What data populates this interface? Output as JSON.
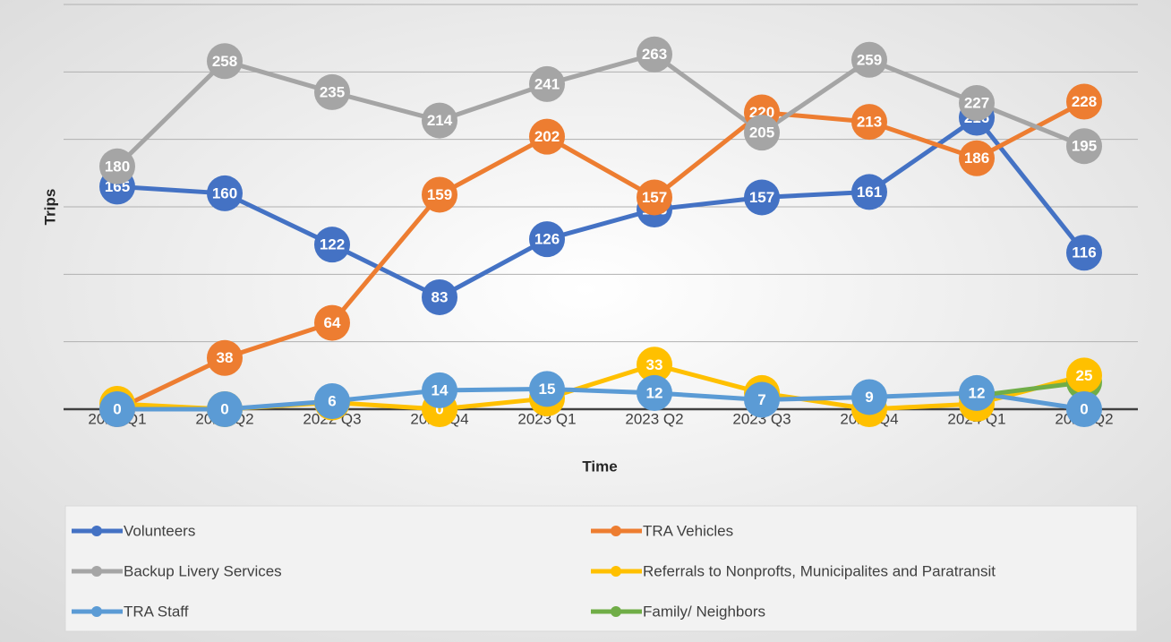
{
  "chart_data": {
    "type": "line",
    "categories": [
      "2022 Q1",
      "2022 Q2",
      "2022 Q3",
      "2022 Q4",
      "2023 Q1",
      "2023 Q2",
      "2023 Q3",
      "2023 Q4",
      "2024 Q1",
      "2024 Q2"
    ],
    "series": [
      {
        "name": "Volunteers",
        "color": "#4472c4",
        "values": [
          165,
          160,
          122,
          83,
          126,
          148,
          157,
          161,
          216,
          116
        ]
      },
      {
        "name": "TRA Vehicles",
        "color": "#ed7d31",
        "values": [
          0,
          38,
          64,
          159,
          202,
          157,
          220,
          213,
          186,
          228
        ]
      },
      {
        "name": "Backup Livery Services",
        "color": "#a5a5a5",
        "values": [
          180,
          258,
          235,
          214,
          241,
          263,
          205,
          259,
          227,
          195
        ]
      },
      {
        "name": "Referrals to Nonprofts, Municipalites and Paratransit",
        "color": "#ffc000",
        "values": [
          4,
          0,
          5,
          0,
          8,
          33,
          12,
          0,
          4,
          25
        ]
      },
      {
        "name": "TRA Staff",
        "color": "#5b9bd5",
        "values": [
          0,
          0,
          6,
          14,
          15,
          12,
          7,
          9,
          12,
          0
        ]
      },
      {
        "name": "Family/ Neighbors",
        "color": "#70ad47",
        "values": [
          null,
          null,
          null,
          null,
          null,
          null,
          null,
          null,
          10,
          20
        ]
      }
    ],
    "xlabel": "Time",
    "ylabel": "Trips",
    "ylim": [
      0,
      300
    ],
    "yticks": [
      0,
      50,
      100,
      150,
      200,
      250,
      300
    ],
    "grid": true,
    "legend": "bottom"
  }
}
